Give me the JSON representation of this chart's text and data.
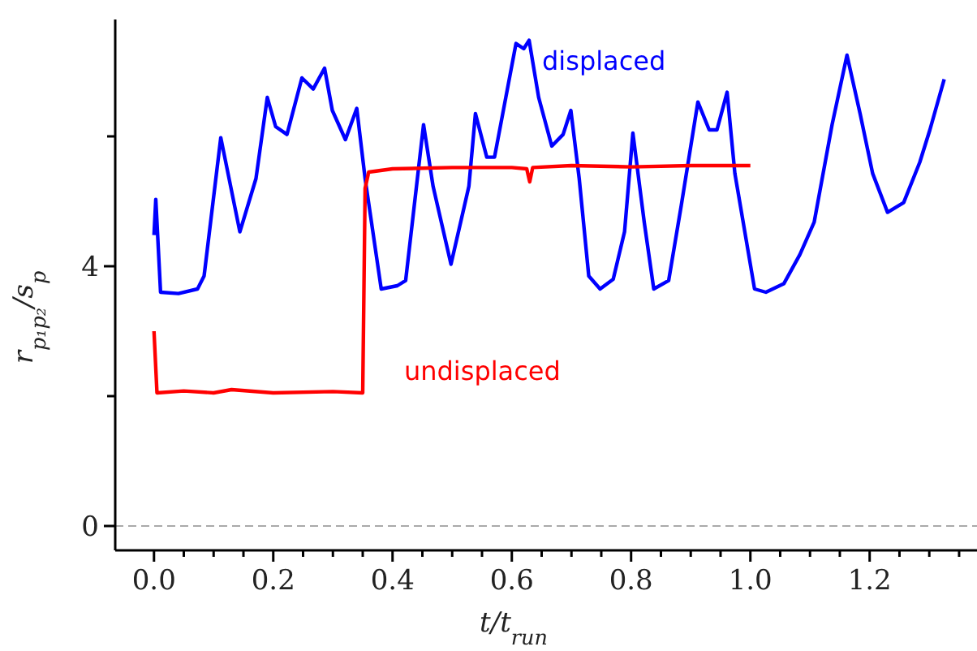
{
  "chart_data": {
    "type": "line",
    "xlabel": "t/t$_{run}$",
    "ylabel": "r$_{p₁p₂}$/s$_{p}$",
    "xlim": [
      -0.065,
      1.38
    ],
    "ylim": [
      -0.375,
      7.8
    ],
    "xticks": [
      {
        "value": 0,
        "label": "0.0"
      },
      {
        "value": 0.05,
        "label": null
      },
      {
        "value": 0.1,
        "label": null
      },
      {
        "value": 0.15,
        "label": null
      },
      {
        "value": 0.2,
        "label": "0.2"
      },
      {
        "value": 0.25,
        "label": null
      },
      {
        "value": 0.3,
        "label": null
      },
      {
        "value": 0.35,
        "label": null
      },
      {
        "value": 0.4,
        "label": "0.4"
      },
      {
        "value": 0.45,
        "label": null
      },
      {
        "value": 0.5,
        "label": null
      },
      {
        "value": 0.55,
        "label": null
      },
      {
        "value": 0.6,
        "label": "0.6"
      },
      {
        "value": 0.65,
        "label": null
      },
      {
        "value": 0.7,
        "label": null
      },
      {
        "value": 0.75,
        "label": null
      },
      {
        "value": 0.8,
        "label": "0.8"
      },
      {
        "value": 0.85,
        "label": null
      },
      {
        "value": 0.9,
        "label": null
      },
      {
        "value": 0.95,
        "label": null
      },
      {
        "value": 1.0,
        "label": "1.0"
      },
      {
        "value": 1.05,
        "label": null
      },
      {
        "value": 1.1,
        "label": null
      },
      {
        "value": 1.15,
        "label": null
      },
      {
        "value": 1.2,
        "label": "1.2"
      },
      {
        "value": 1.25,
        "label": null
      },
      {
        "value": 1.3,
        "label": null
      },
      {
        "value": 1.35,
        "label": null
      }
    ],
    "yticks": [
      0,
      {
        "value": 2,
        "label": null
      },
      4,
      {
        "value": 6,
        "label": null
      }
    ],
    "marker": "none",
    "line_style": "solid",
    "ref_lines": [
      {
        "axis": "y",
        "value": 0,
        "color": "#aaaaaa",
        "line_style": "dashed"
      }
    ],
    "series": [
      {
        "name": "displaced",
        "color": "#0000ff",
        "x": [
          0,
          0.003,
          0.006,
          0.011,
          0.041,
          0.073,
          0.084,
          0.112,
          0.144,
          0.171,
          0.19,
          0.204,
          0.223,
          0.248,
          0.267,
          0.286,
          0.299,
          0.321,
          0.34,
          0.354,
          0.381,
          0.408,
          0.422,
          0.452,
          0.468,
          0.498,
          0.528,
          0.539,
          0.558,
          0.571,
          0.607,
          0.62,
          0.629,
          0.645,
          0.667,
          0.686,
          0.699,
          0.713,
          0.729,
          0.748,
          0.77,
          0.789,
          0.803,
          0.822,
          0.838,
          0.863,
          0.884,
          0.912,
          0.931,
          0.944,
          0.961,
          0.974,
          1.007,
          1.026,
          1.056,
          1.083,
          1.107,
          1.137,
          1.162,
          1.184,
          1.205,
          1.23,
          1.257,
          1.284,
          1.301,
          1.325
        ],
        "values": [
          4.48,
          5.03,
          4.5,
          3.6,
          3.58,
          3.65,
          3.85,
          5.98,
          4.53,
          5.35,
          6.6,
          6.15,
          6.03,
          6.9,
          6.73,
          7.05,
          6.4,
          5.95,
          6.43,
          5.35,
          3.65,
          3.7,
          3.78,
          6.18,
          5.23,
          4.03,
          5.23,
          6.35,
          5.68,
          5.68,
          7.43,
          7.35,
          7.48,
          6.6,
          5.85,
          6.03,
          6.4,
          5.35,
          3.85,
          3.65,
          3.8,
          4.53,
          6.05,
          4.68,
          3.65,
          3.78,
          4.93,
          6.53,
          6.1,
          6.1,
          6.68,
          5.43,
          3.65,
          3.6,
          3.73,
          4.18,
          4.68,
          6.18,
          7.25,
          6.35,
          5.43,
          4.83,
          4.98,
          5.6,
          6.1,
          6.88
        ]
      },
      {
        "name": "undisplaced",
        "color": "#ff0000",
        "x": [
          0,
          0.005,
          0.05,
          0.1,
          0.13,
          0.2,
          0.3,
          0.35,
          0.354,
          0.36,
          0.4,
          0.5,
          0.6,
          0.625,
          0.63,
          0.635,
          0.7,
          0.8,
          0.9,
          1.0
        ],
        "values": [
          3.0,
          2.05,
          2.08,
          2.05,
          2.1,
          2.05,
          2.07,
          2.05,
          5.2,
          5.45,
          5.5,
          5.52,
          5.52,
          5.5,
          5.3,
          5.52,
          5.55,
          5.53,
          5.55,
          5.55
        ]
      }
    ]
  }
}
